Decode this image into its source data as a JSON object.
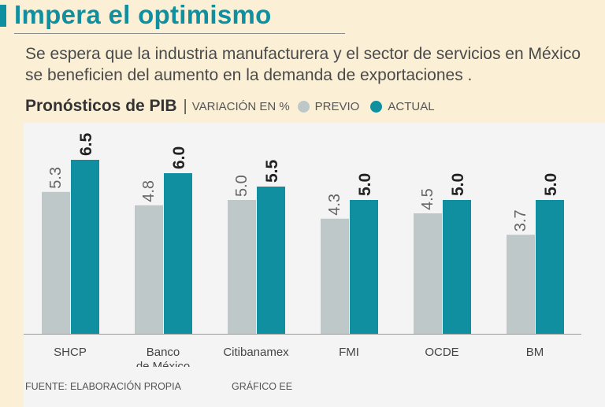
{
  "header": {
    "title": "Impera el optimismo",
    "subtitle": "Se espera que la industria manufacturera y el sector de servicios en México se beneficien del aumento en la demanda de exportaciones ."
  },
  "colors": {
    "background": "#fbf0d6",
    "accent": "#0f8fa0",
    "previo": "#bfc8c8",
    "actual": "#0f8fa0",
    "panel": "#f4f4f4",
    "axis": "#9a9a9a"
  },
  "chart_data": {
    "type": "bar",
    "title": "Pronósticos de PIB",
    "units_label": "VARIACIÓN EN %",
    "categories": [
      "SHCP",
      "Banco de México",
      "Citibanamex",
      "FMI",
      "OCDE",
      "BM"
    ],
    "category_lines": [
      [
        "SHCP"
      ],
      [
        "Banco",
        "de México"
      ],
      [
        "Citibanamex"
      ],
      [
        "FMI"
      ],
      [
        "OCDE"
      ],
      [
        "BM"
      ]
    ],
    "series": [
      {
        "name": "PREVIO",
        "values": [
          5.3,
          4.8,
          5.0,
          4.3,
          4.5,
          3.7
        ],
        "labels": [
          "5.3",
          "4.8",
          "5.0",
          "4.3",
          "4.5",
          "3.7"
        ]
      },
      {
        "name": "ACTUAL",
        "values": [
          6.5,
          6.0,
          5.5,
          5.0,
          5.0,
          5.0
        ],
        "labels": [
          "6.5",
          "6.0",
          "5.5",
          "5.0",
          "5.0",
          "5.0"
        ]
      }
    ],
    "ylim": [
      0,
      6.5
    ],
    "xlabel": "",
    "ylabel": "",
    "grid": false,
    "legend": "top"
  },
  "footer": {
    "source": "FUENTE: ELABORACIÓN PROPIA",
    "credit": "GRÁFICO EE"
  }
}
